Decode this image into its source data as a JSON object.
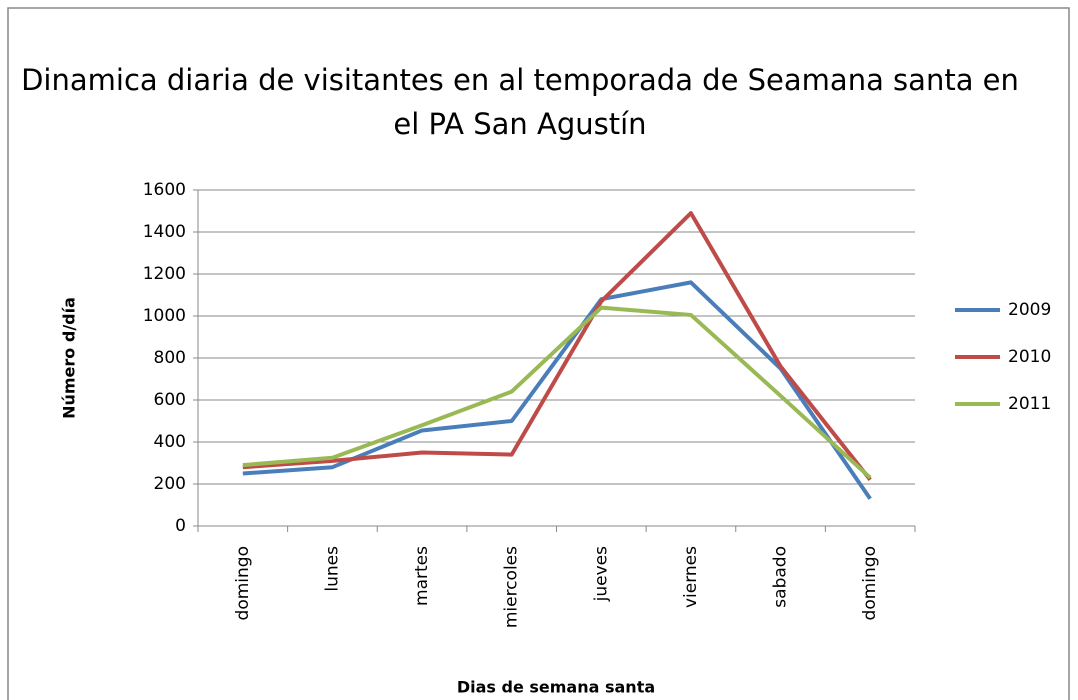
{
  "chart_data": {
    "type": "line",
    "title": "Dinamica diaria de visitantes en al temporada de Seamana santa en el PA San Agustín",
    "x_label": "Dias de semana santa",
    "y_label": "Número d/día",
    "categories": [
      "domingo",
      "lunes",
      "martes",
      "miercoles",
      "jueves",
      "viernes",
      "sabado",
      "domingo"
    ],
    "series": [
      {
        "name": "2009",
        "color": "#4a7ebb",
        "values": [
          250,
          280,
          455,
          500,
          1080,
          1160,
          750,
          130
        ]
      },
      {
        "name": "2010",
        "color": "#be4b48",
        "values": [
          280,
          310,
          350,
          340,
          1070,
          1490,
          760,
          220
        ]
      },
      {
        "name": "2011",
        "color": "#98b954",
        "values": [
          290,
          325,
          480,
          640,
          1040,
          1005,
          620,
          230
        ]
      }
    ],
    "ylim": [
      0,
      1600
    ],
    "yticks": [
      0,
      200,
      400,
      600,
      800,
      1000,
      1200,
      1400,
      1600
    ],
    "grid": true,
    "legend": "right"
  }
}
